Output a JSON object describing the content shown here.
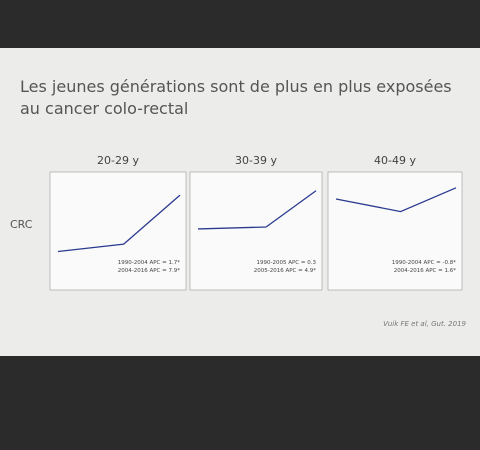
{
  "title": "Les jeunes générations sont de plus en plus exposées au cancer colo-rectal",
  "row_label": "CRC",
  "citation": "Vuik FE et al, Gut. 2019",
  "chart_data": [
    {
      "type": "line",
      "title": "20-29 y",
      "x": [
        1990,
        2004,
        2016
      ],
      "xlim": [
        1990,
        2016
      ],
      "ylim": [
        0,
        4
      ],
      "series": [
        {
          "color": "#2b3a8f",
          "values": [
            1.0,
            1.3,
            3.3
          ]
        }
      ],
      "annotations": [
        "1990-2004 APC = 1.7*",
        "2004-2016 APC = 7.9*"
      ]
    },
    {
      "type": "line",
      "title": "30-39 y",
      "x": [
        1990,
        2005,
        2016
      ],
      "xlim": [
        1990,
        2016
      ],
      "ylim": [
        0,
        10
      ],
      "series": [
        {
          "color": "#2b3a8f",
          "values": [
            4.8,
            5.0,
            8.7
          ]
        }
      ],
      "annotations": [
        "1990-2005 APC = 0.3",
        "2005-2016 APC = 4.9*"
      ]
    },
    {
      "type": "line",
      "title": "40-49 y",
      "x": [
        1990,
        2004,
        2016
      ],
      "xlim": [
        1990,
        2016
      ],
      "ylim": [
        10,
        24
      ],
      "series": [
        {
          "color": "#2b3a8f",
          "values": [
            21.0,
            19.2,
            22.6
          ]
        }
      ],
      "annotations": [
        "1990-2004 APC = -0.8*",
        "2004-2016 APC = 1.6*"
      ]
    }
  ]
}
